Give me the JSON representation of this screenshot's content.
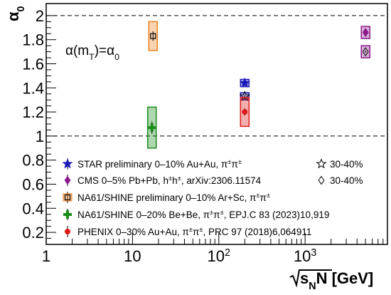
{
  "chart_data": {
    "type": "scatter",
    "title": "",
    "annotation": "α(m_T)=α_0",
    "xlabel": "√s_NN [GeV]",
    "ylabel": "α_0",
    "xscale": "log",
    "xlim": [
      1,
      9000
    ],
    "ylim": [
      0.1,
      2.1
    ],
    "x_tick_labels": [
      "1",
      "10",
      "10²",
      "10³"
    ],
    "y_tick_labels": [
      "0.2",
      "0.4",
      "0.6",
      "0.8",
      "1",
      "1.2",
      "1.4",
      "1.6",
      "1.8",
      "2"
    ],
    "reference_lines": [
      1.0,
      2.0
    ],
    "grid": false,
    "legend_position": "bottom",
    "series": [
      {
        "name": "STAR preliminary 0–10% Au+Au, π±π±",
        "secondary_label": "30-40%",
        "color": "#1a1ab8",
        "marker": "star",
        "points": [
          {
            "x": 200,
            "y": 1.44,
            "yerr": 0.01,
            "syst": 0.03,
            "centrality": "0–10%",
            "filled": true
          },
          {
            "x": 200,
            "y": 1.33,
            "yerr": 0.01,
            "syst": 0.03,
            "centrality": "30-40%",
            "filled": false
          }
        ]
      },
      {
        "name": "CMS 0–5% Pb+Pb, h±h±, arXiv:2306.11574",
        "secondary_label": "30-40%",
        "color": "#8b1a8b",
        "marker": "diamond",
        "points": [
          {
            "x": 5020,
            "y": 1.86,
            "yerr": 0.01,
            "syst": 0.05,
            "centrality": "0–5%",
            "filled": true
          },
          {
            "x": 5020,
            "y": 1.7,
            "yerr": 0.01,
            "syst": 0.05,
            "centrality": "30-40%",
            "filled": false
          }
        ]
      },
      {
        "name": "NA61/SHINE preliminary 0–10% Ar+Sc, π±π±",
        "color": "#f08020",
        "marker": "square-open",
        "points": [
          {
            "x": 17.3,
            "y": 1.83,
            "yerr": 0.04,
            "syst": 0.12
          }
        ]
      },
      {
        "name": "NA61/SHINE 0–20% Be+Be, π±π±, EPJ.C 83 (2023)10,919",
        "color": "#1a8c1a",
        "marker": "cross",
        "points": [
          {
            "x": 16.8,
            "y": 1.07,
            "yerr": 0.05,
            "syst": 0.17
          }
        ]
      },
      {
        "name": "PHENIX 0–30% Au+Au, π±π±, PRC 97 (2018)6,064911",
        "color": "#e01818",
        "marker": "circle",
        "points": [
          {
            "x": 200,
            "y": 1.2,
            "yerr": 0.03,
            "syst": 0.12
          }
        ]
      }
    ]
  }
}
